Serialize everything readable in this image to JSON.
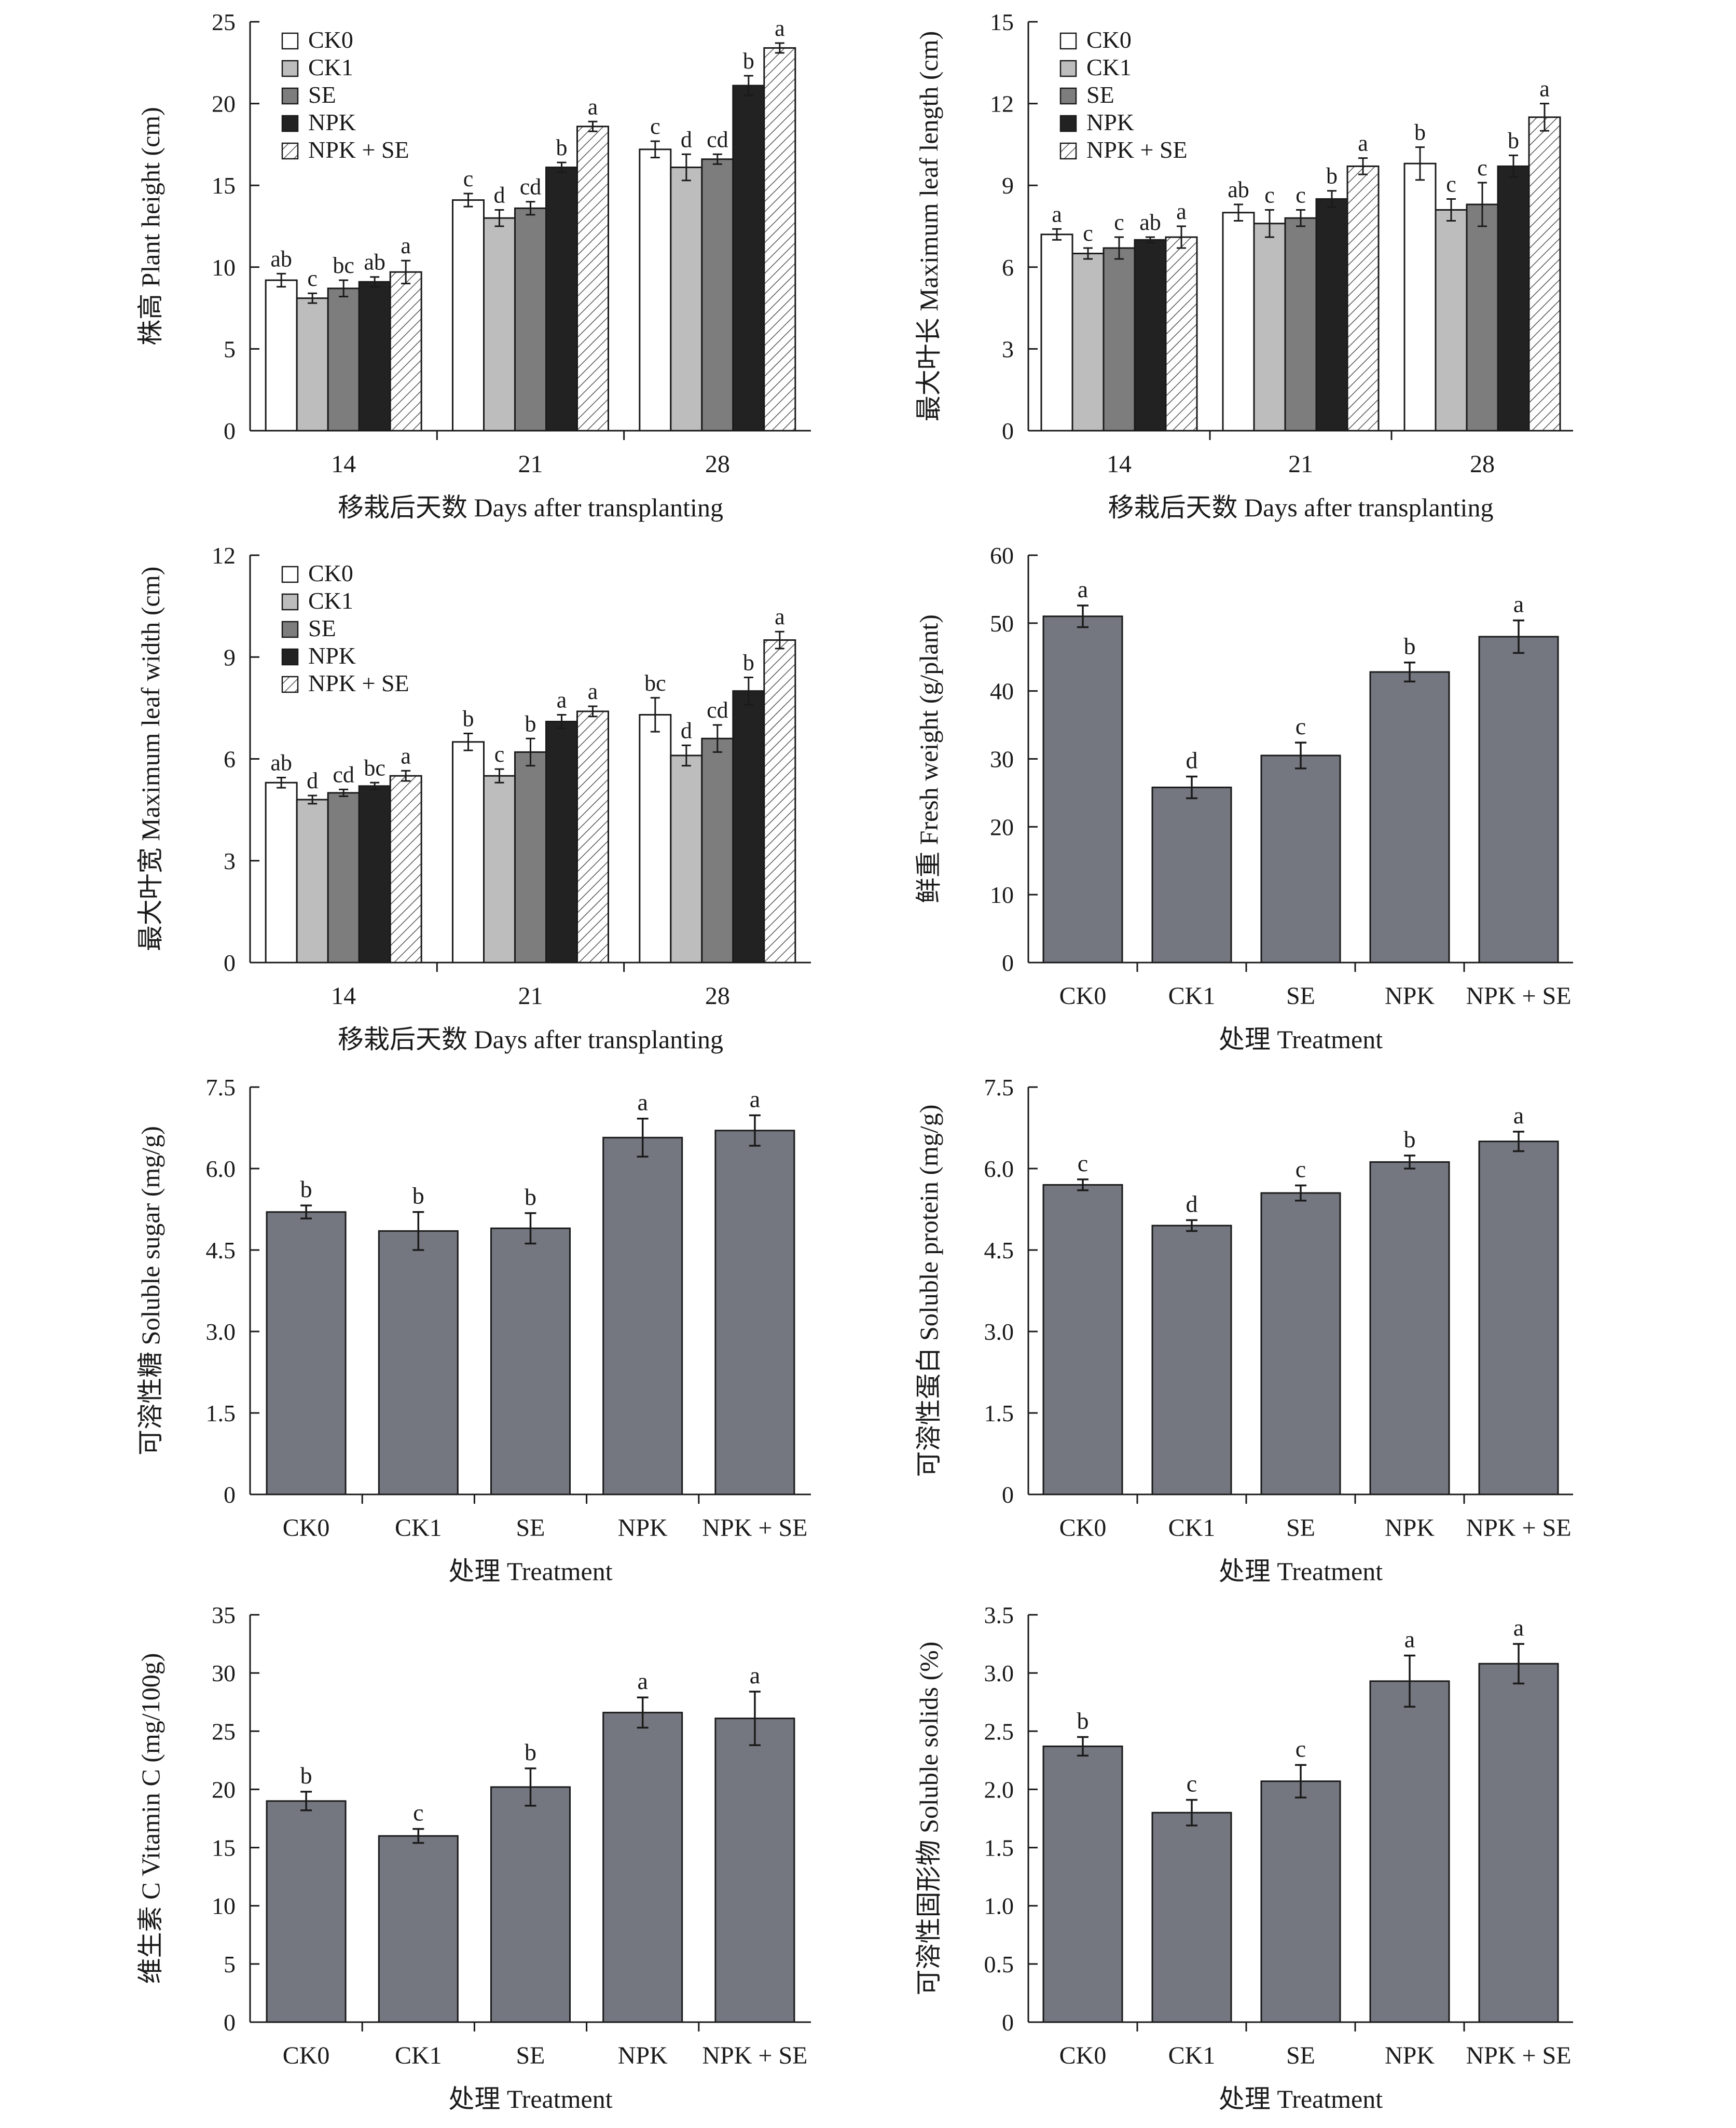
{
  "colors": {
    "CK0": "#ffffff",
    "CK1": "#bdbdbd",
    "SE": "#7d7d7d",
    "NPK": "#222222",
    "NPK + SE": "hatch",
    "single": "#747780"
  },
  "legend_items": [
    "CK0",
    "CK1",
    "SE",
    "NPK",
    "NPK + SE"
  ],
  "chart_data": [
    {
      "type": "bar",
      "grouped": true,
      "ylabel": "株高 Plant height (cm)",
      "xlabel": "移栽后天数 Days after transplanting",
      "ylim": [
        0,
        25
      ],
      "yticks": [
        "0",
        "5",
        "10",
        "15",
        "20",
        "25"
      ],
      "categories": [
        "14",
        "21",
        "28"
      ],
      "legend": "top-left",
      "series": [
        {
          "name": "CK0",
          "values": [
            9.2,
            14.1,
            17.2
          ],
          "err": [
            0.4,
            0.4,
            0.5
          ],
          "letters": [
            "ab",
            "c",
            "c"
          ]
        },
        {
          "name": "CK1",
          "values": [
            8.1,
            13.0,
            16.1
          ],
          "err": [
            0.3,
            0.5,
            0.8
          ],
          "letters": [
            "c",
            "d",
            "d"
          ]
        },
        {
          "name": "SE",
          "values": [
            8.7,
            13.6,
            16.6
          ],
          "err": [
            0.5,
            0.4,
            0.3
          ],
          "letters": [
            "bc",
            "cd",
            "cd"
          ]
        },
        {
          "name": "NPK",
          "values": [
            9.1,
            16.1,
            21.1
          ],
          "err": [
            0.3,
            0.3,
            0.6
          ],
          "letters": [
            "ab",
            "b",
            "b"
          ]
        },
        {
          "name": "NPK + SE",
          "values": [
            9.7,
            18.6,
            23.4
          ],
          "err": [
            0.7,
            0.3,
            0.3
          ],
          "letters": [
            "a",
            "a",
            "a"
          ]
        }
      ]
    },
    {
      "type": "bar",
      "grouped": true,
      "ylabel": "最大叶长 Maximum leaf length (cm)",
      "xlabel": "移栽后天数 Days after transplanting",
      "ylim": [
        0,
        15
      ],
      "yticks": [
        "0",
        "3",
        "6",
        "9",
        "12",
        "15"
      ],
      "categories": [
        "14",
        "21",
        "28"
      ],
      "legend": "top-left",
      "series": [
        {
          "name": "CK0",
          "values": [
            7.2,
            8.0,
            9.8
          ],
          "err": [
            0.2,
            0.3,
            0.6
          ],
          "letters": [
            "a",
            "ab",
            "b"
          ]
        },
        {
          "name": "CK1",
          "values": [
            6.5,
            7.6,
            8.1
          ],
          "err": [
            0.2,
            0.5,
            0.4
          ],
          "letters": [
            "c",
            "c",
            "c"
          ]
        },
        {
          "name": "SE",
          "values": [
            6.7,
            7.8,
            8.3
          ],
          "err": [
            0.4,
            0.3,
            0.8
          ],
          "letters": [
            "c",
            "c",
            "c"
          ]
        },
        {
          "name": "NPK",
          "values": [
            7.0,
            8.5,
            9.7
          ],
          "err": [
            0.1,
            0.3,
            0.4
          ],
          "letters": [
            "ab",
            "b",
            "b"
          ]
        },
        {
          "name": "NPK + SE",
          "values": [
            7.1,
            9.7,
            11.5
          ],
          "err": [
            0.4,
            0.3,
            0.5
          ],
          "letters": [
            "a",
            "a",
            "a"
          ]
        }
      ]
    },
    {
      "type": "bar",
      "grouped": true,
      "ylabel": "最大叶宽 Maximum leaf width (cm)",
      "xlabel": "移栽后天数 Days after transplanting",
      "ylim": [
        0,
        12
      ],
      "yticks": [
        "0",
        "3",
        "6",
        "9",
        "12"
      ],
      "categories": [
        "14",
        "21",
        "28"
      ],
      "legend": "top-left",
      "series": [
        {
          "name": "CK0",
          "values": [
            5.3,
            6.5,
            7.3
          ],
          "err": [
            0.15,
            0.25,
            0.5
          ],
          "letters": [
            "ab",
            "b",
            "bc"
          ]
        },
        {
          "name": "CK1",
          "values": [
            4.8,
            5.5,
            6.1
          ],
          "err": [
            0.12,
            0.2,
            0.3
          ],
          "letters": [
            "d",
            "c",
            "d"
          ]
        },
        {
          "name": "SE",
          "values": [
            5.0,
            6.2,
            6.6
          ],
          "err": [
            0.1,
            0.4,
            0.4
          ],
          "letters": [
            "cd",
            "b",
            "cd"
          ]
        },
        {
          "name": "NPK",
          "values": [
            5.2,
            7.1,
            8.0
          ],
          "err": [
            0.1,
            0.2,
            0.4
          ],
          "letters": [
            "bc",
            "a",
            "b"
          ]
        },
        {
          "name": "NPK + SE",
          "values": [
            5.5,
            7.4,
            9.5
          ],
          "err": [
            0.15,
            0.15,
            0.25
          ],
          "letters": [
            "a",
            "a",
            "a"
          ]
        }
      ]
    },
    {
      "type": "bar",
      "ylabel": "鲜重 Fresh weight (g/plant)",
      "xlabel": "处理 Treatment",
      "ylim": [
        0,
        60
      ],
      "yticks": [
        "0",
        "10",
        "20",
        "30",
        "40",
        "50",
        "60"
      ],
      "categories": [
        "CK0",
        "CK1",
        "SE",
        "NPK",
        "NPK + SE"
      ],
      "values": [
        51.0,
        25.8,
        30.5,
        42.8,
        48.0
      ],
      "err": [
        1.6,
        1.6,
        1.9,
        1.4,
        2.4
      ],
      "letters": [
        "a",
        "d",
        "c",
        "b",
        "a"
      ]
    },
    {
      "type": "bar",
      "ylabel": "可溶性糖 Soluble sugar (mg/g)",
      "xlabel": "处理 Treatment",
      "ylim": [
        0,
        7.5
      ],
      "yticks": [
        "0",
        "1.5",
        "3.0",
        "4.5",
        "6.0",
        "7.5"
      ],
      "categories": [
        "CK0",
        "CK1",
        "SE",
        "NPK",
        "NPK + SE"
      ],
      "values": [
        5.2,
        4.85,
        4.9,
        6.57,
        6.7
      ],
      "err": [
        0.12,
        0.35,
        0.28,
        0.35,
        0.28
      ],
      "letters": [
        "b",
        "b",
        "b",
        "a",
        "a"
      ]
    },
    {
      "type": "bar",
      "ylabel": "可溶性蛋白 Soluble protein (mg/g)",
      "xlabel": "处理 Treatment",
      "ylim": [
        0,
        7.5
      ],
      "yticks": [
        "0",
        "1.5",
        "3.0",
        "4.5",
        "6.0",
        "7.5"
      ],
      "categories": [
        "CK0",
        "CK1",
        "SE",
        "NPK",
        "NPK + SE"
      ],
      "values": [
        5.7,
        4.95,
        5.55,
        6.12,
        6.5
      ],
      "err": [
        0.1,
        0.1,
        0.14,
        0.12,
        0.18
      ],
      "letters": [
        "c",
        "d",
        "c",
        "b",
        "a"
      ]
    },
    {
      "type": "bar",
      "ylabel": "维生素 C Vitamin C (mg/100g)",
      "xlabel": "处理 Treatment",
      "ylim": [
        0,
        35
      ],
      "yticks": [
        "0",
        "5",
        "10",
        "15",
        "20",
        "25",
        "30",
        "35"
      ],
      "categories": [
        "CK0",
        "CK1",
        "SE",
        "NPK",
        "NPK + SE"
      ],
      "values": [
        19.0,
        16.0,
        20.2,
        26.6,
        26.1
      ],
      "err": [
        0.8,
        0.6,
        1.6,
        1.3,
        2.3
      ],
      "letters": [
        "b",
        "c",
        "b",
        "a",
        "a"
      ]
    },
    {
      "type": "bar",
      "ylabel": "可溶性固形物 Soluble solids (%)",
      "xlabel": "处理 Treatment",
      "ylim": [
        0,
        3.5
      ],
      "yticks": [
        "0",
        "0.5",
        "1.0",
        "1.5",
        "2.0",
        "2.5",
        "3.0",
        "3.5"
      ],
      "categories": [
        "CK0",
        "CK1",
        "SE",
        "NPK",
        "NPK + SE"
      ],
      "values": [
        2.37,
        1.8,
        2.07,
        2.93,
        3.08
      ],
      "err": [
        0.08,
        0.11,
        0.14,
        0.22,
        0.17
      ],
      "letters": [
        "b",
        "c",
        "c",
        "a",
        "a"
      ]
    }
  ]
}
